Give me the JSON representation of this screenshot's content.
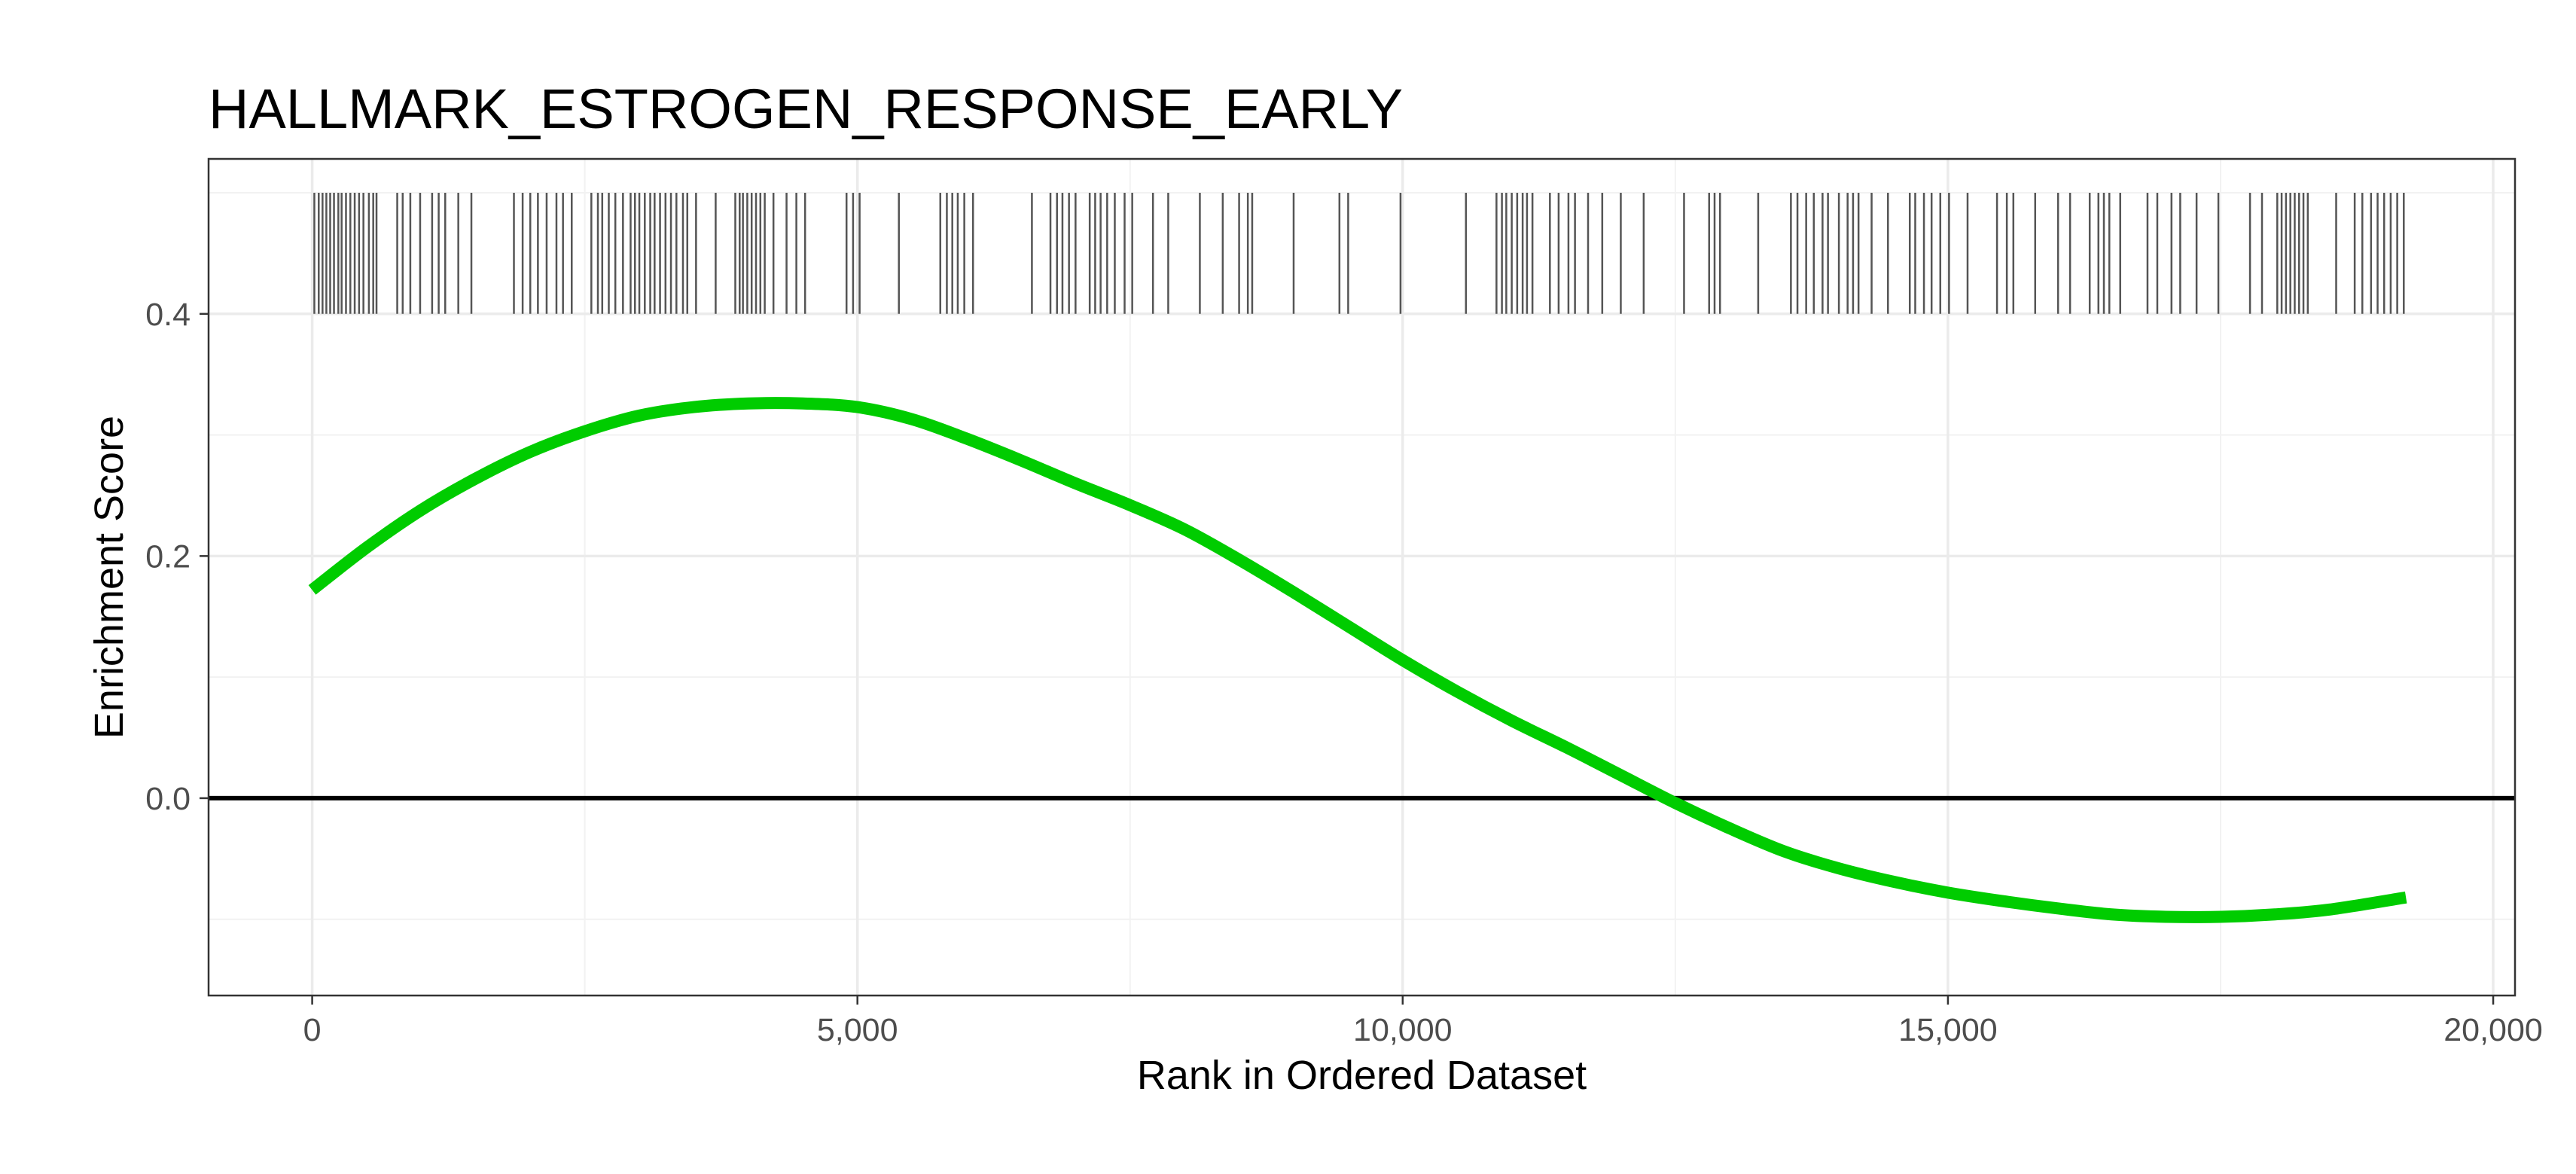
{
  "chart_data": {
    "type": "line",
    "title": "HALLMARK_ESTROGEN_RESPONSE_EARLY",
    "xlabel": "Rank in Ordered Dataset",
    "ylabel": "Enrichment Score",
    "xlim": [
      -950,
      20200
    ],
    "ylim": [
      -0.163,
      0.528
    ],
    "x_ticks": [
      {
        "value": 0,
        "label": "0"
      },
      {
        "value": 5000,
        "label": "5,000"
      },
      {
        "value": 10000,
        "label": "10,000"
      },
      {
        "value": 15000,
        "label": "15,000"
      },
      {
        "value": 20000,
        "label": "20,000"
      }
    ],
    "y_ticks": [
      {
        "value": 0.0,
        "label": "0.0"
      },
      {
        "value": 0.2,
        "label": "0.2"
      },
      {
        "value": 0.4,
        "label": "0.4"
      }
    ],
    "grid": true,
    "zero_line": 0,
    "series": [
      {
        "color": "#00cc00",
        "x": [
          0,
          500,
          1000,
          1500,
          2000,
          2500,
          3000,
          3500,
          4000,
          4500,
          5000,
          5500,
          6000,
          6500,
          7000,
          7500,
          8000,
          8500,
          9000,
          9500,
          10000,
          10500,
          11000,
          11500,
          12000,
          12500,
          13000,
          13500,
          14000,
          14500,
          15000,
          15500,
          16000,
          16500,
          17000,
          17500,
          18000,
          18500,
          19200
        ],
        "y": [
          0.172,
          0.207,
          0.238,
          0.264,
          0.286,
          0.303,
          0.316,
          0.323,
          0.326,
          0.326,
          0.323,
          0.313,
          0.297,
          0.279,
          0.26,
          0.242,
          0.222,
          0.197,
          0.17,
          0.142,
          0.114,
          0.088,
          0.064,
          0.042,
          0.019,
          -0.004,
          -0.025,
          -0.044,
          -0.058,
          -0.069,
          -0.078,
          -0.085,
          -0.091,
          -0.096,
          -0.098,
          -0.098,
          -0.096,
          -0.092,
          -0.082
        ]
      }
    ],
    "rug": {
      "color": "#555555",
      "y_range": [
        0.4,
        0.5
      ],
      "positions": [
        20,
        60,
        95,
        130,
        165,
        200,
        240,
        270,
        310,
        350,
        390,
        430,
        470,
        520,
        560,
        590,
        780,
        830,
        900,
        990,
        1100,
        1160,
        1220,
        1340,
        1460,
        1850,
        1930,
        2000,
        2070,
        2150,
        2240,
        2300,
        2380,
        2560,
        2620,
        2660,
        2720,
        2780,
        2850,
        2920,
        2960,
        3000,
        3050,
        3100,
        3140,
        3190,
        3240,
        3290,
        3340,
        3400,
        3440,
        3520,
        3700,
        3880,
        3920,
        3950,
        3990,
        4030,
        4070,
        4110,
        4150,
        4230,
        4350,
        4440,
        4520,
        4900,
        4960,
        5020,
        5380,
        5760,
        5820,
        5870,
        5920,
        5980,
        6060,
        6600,
        6770,
        6830,
        6880,
        6940,
        7000,
        7130,
        7180,
        7230,
        7290,
        7360,
        7450,
        7520,
        7710,
        7850,
        8140,
        8350,
        8500,
        8580,
        8620,
        9000,
        9420,
        9500,
        9980,
        10580,
        10860,
        10910,
        10950,
        11000,
        11050,
        11100,
        11140,
        11190,
        11350,
        11430,
        11520,
        11580,
        11700,
        11830,
        12000,
        12210,
        12580,
        12810,
        12860,
        12910,
        13260,
        13560,
        13620,
        13700,
        13770,
        13850,
        13900,
        14000,
        14080,
        14130,
        14180,
        14300,
        14450,
        14650,
        14700,
        14780,
        14850,
        14930,
        15010,
        15180,
        15450,
        15540,
        15600,
        15800,
        16010,
        16120,
        16300,
        16380,
        16430,
        16480,
        16580,
        16830,
        16920,
        17050,
        17130,
        17280,
        17480,
        17770,
        17880,
        18020,
        18060,
        18100,
        18140,
        18180,
        18220,
        18260,
        18300,
        18560,
        18730,
        18800,
        18880,
        18940,
        19000,
        19060,
        19120,
        19180
      ]
    }
  }
}
